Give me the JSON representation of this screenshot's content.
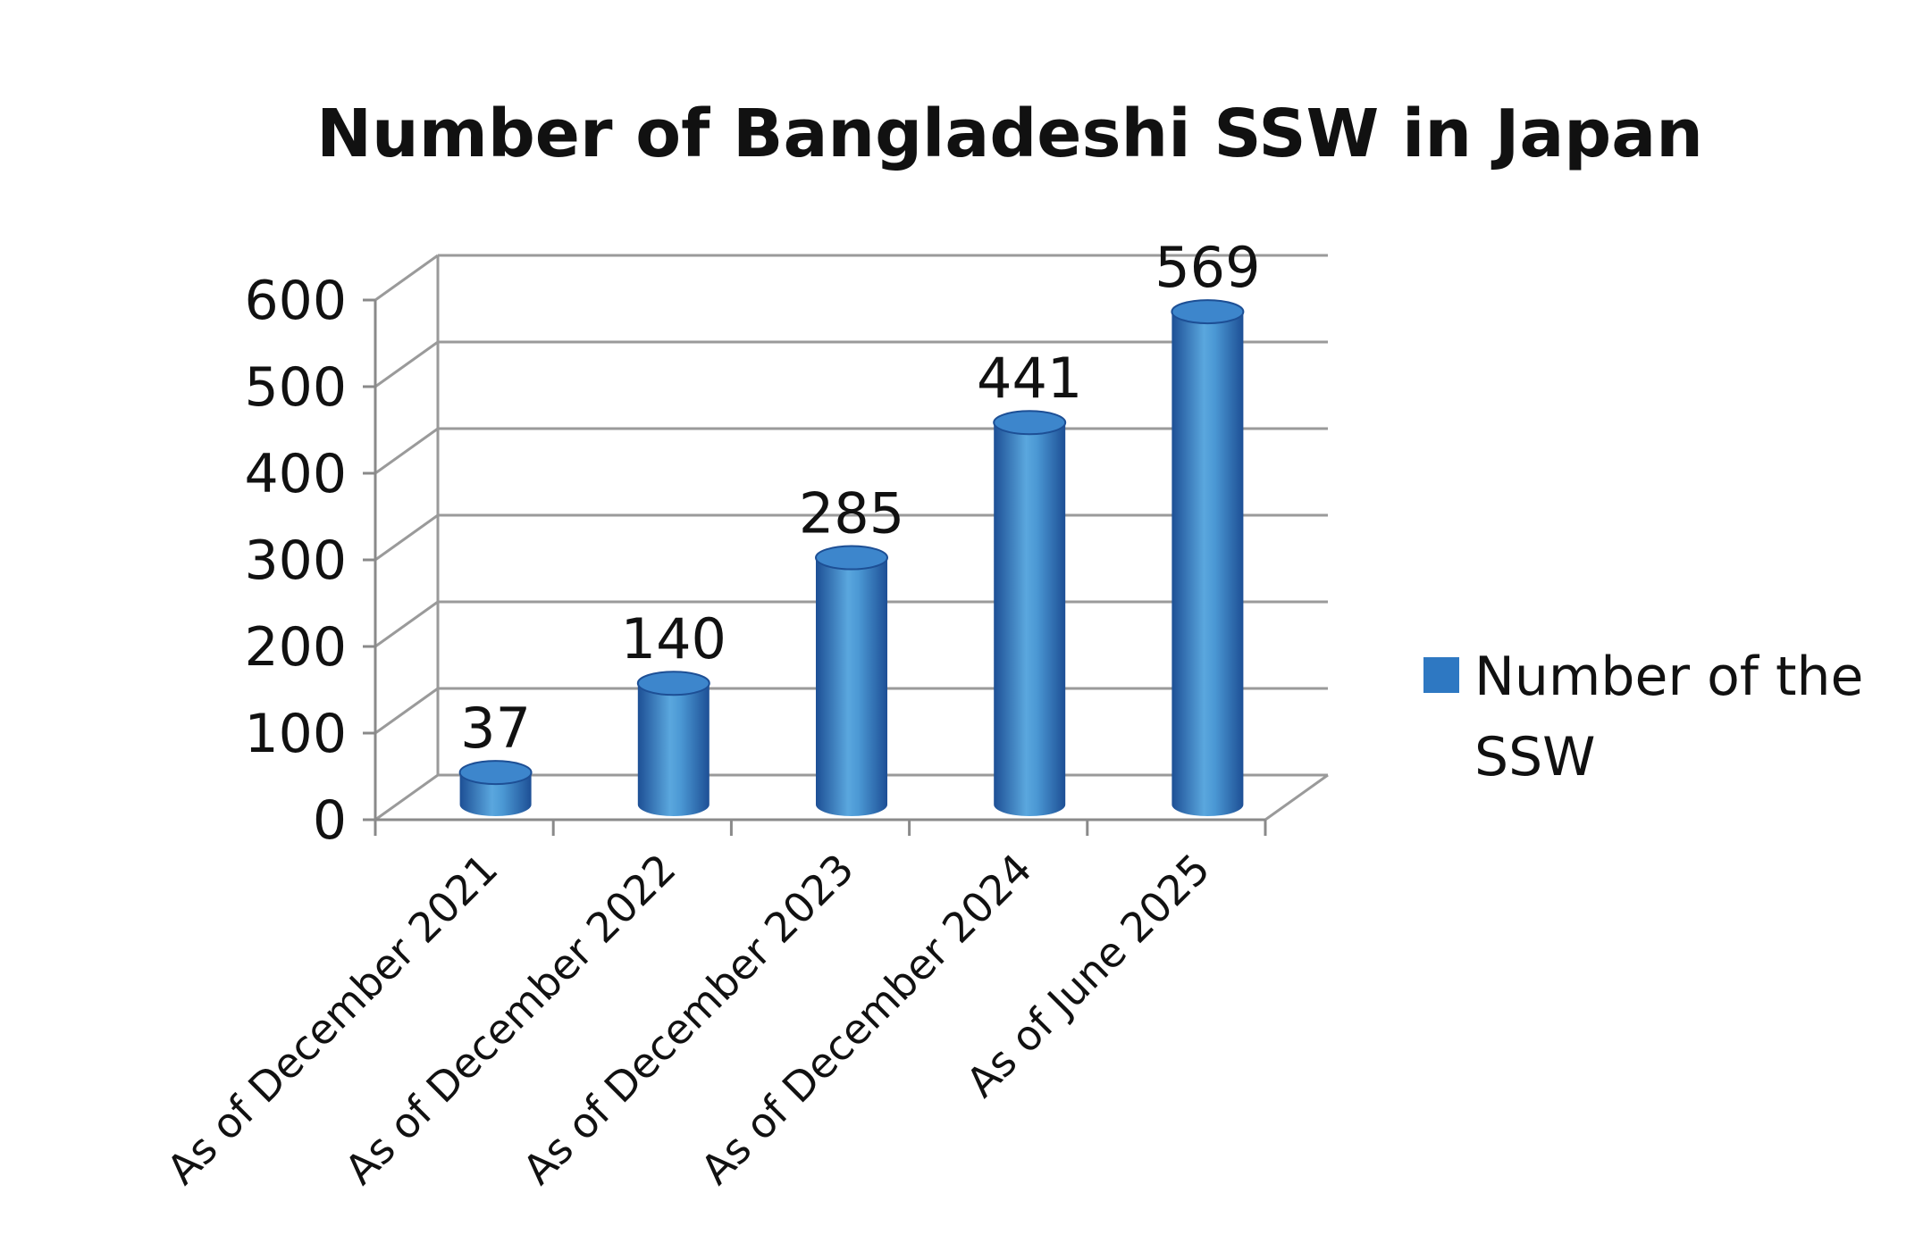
{
  "chart_data": {
    "type": "bar",
    "style": "3d-cylinder",
    "title": "Number of Bangladeshi SSW in Japan",
    "xlabel": "",
    "ylabel": "",
    "categories": [
      "As of December 2021",
      "As of December 2022",
      "As of December 2023",
      "As of December 2024",
      "As of June 2025"
    ],
    "series": [
      {
        "name": "Number of the SSW",
        "values": [
          37,
          140,
          285,
          441,
          569
        ],
        "color": "#2e78c2",
        "legend_lines": [
          "Number of the",
          "SSW"
        ]
      }
    ],
    "data_labels": [
      "37",
      "140",
      "285",
      "441",
      "569"
    ],
    "y_ticks": [
      "0",
      "100",
      "200",
      "300",
      "400",
      "500",
      "600"
    ],
    "ylim": [
      0,
      600
    ],
    "grid": true,
    "legend_position": "right",
    "colors": {
      "bar_dark": "#1d4f95",
      "bar_mid": "#2e78c2",
      "bar_light": "#5aa7de",
      "bar_top": "#3d86cc",
      "grid": "#9a9a9a"
    }
  }
}
